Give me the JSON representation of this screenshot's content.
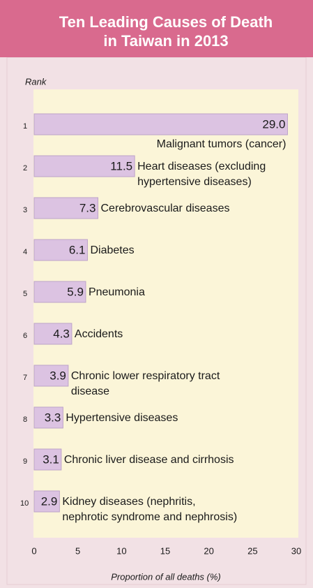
{
  "chart_data": {
    "type": "hbar",
    "title": "Ten Leading Causes of Death\nin Taiwan in 2013",
    "y_label": "Rank",
    "x_label": "Proportion of all deaths (%)",
    "ranks": [
      1,
      2,
      3,
      4,
      5,
      6,
      7,
      8,
      9,
      10
    ],
    "categories": [
      "Malignant tumors (cancer)",
      "Heart diseases (excluding\nhypertensive diseases)",
      "Cerebrovascular diseases",
      "Diabetes",
      "Pneumonia",
      "Accidents",
      "Chronic lower respiratory tract\ndisease",
      "Hypertensive diseases",
      "Chronic liver disease and cirrhosis",
      "Kidney diseases (nephritis,\nnephrotic syndrome and nephrosis)"
    ],
    "values": [
      29.0,
      11.5,
      7.3,
      6.1,
      5.9,
      4.3,
      3.9,
      3.3,
      3.1,
      2.9
    ],
    "value_labels": [
      "29.0",
      "11.5",
      "7.3",
      "6.1",
      "5.9",
      "4.3",
      "3.9",
      "3.3",
      "3.1",
      "2.9"
    ],
    "color": "#dcc3e2",
    "xlim": [
      0,
      30
    ],
    "xticks": [
      0,
      5,
      10,
      15,
      20,
      25,
      30
    ],
    "grid": false
  }
}
